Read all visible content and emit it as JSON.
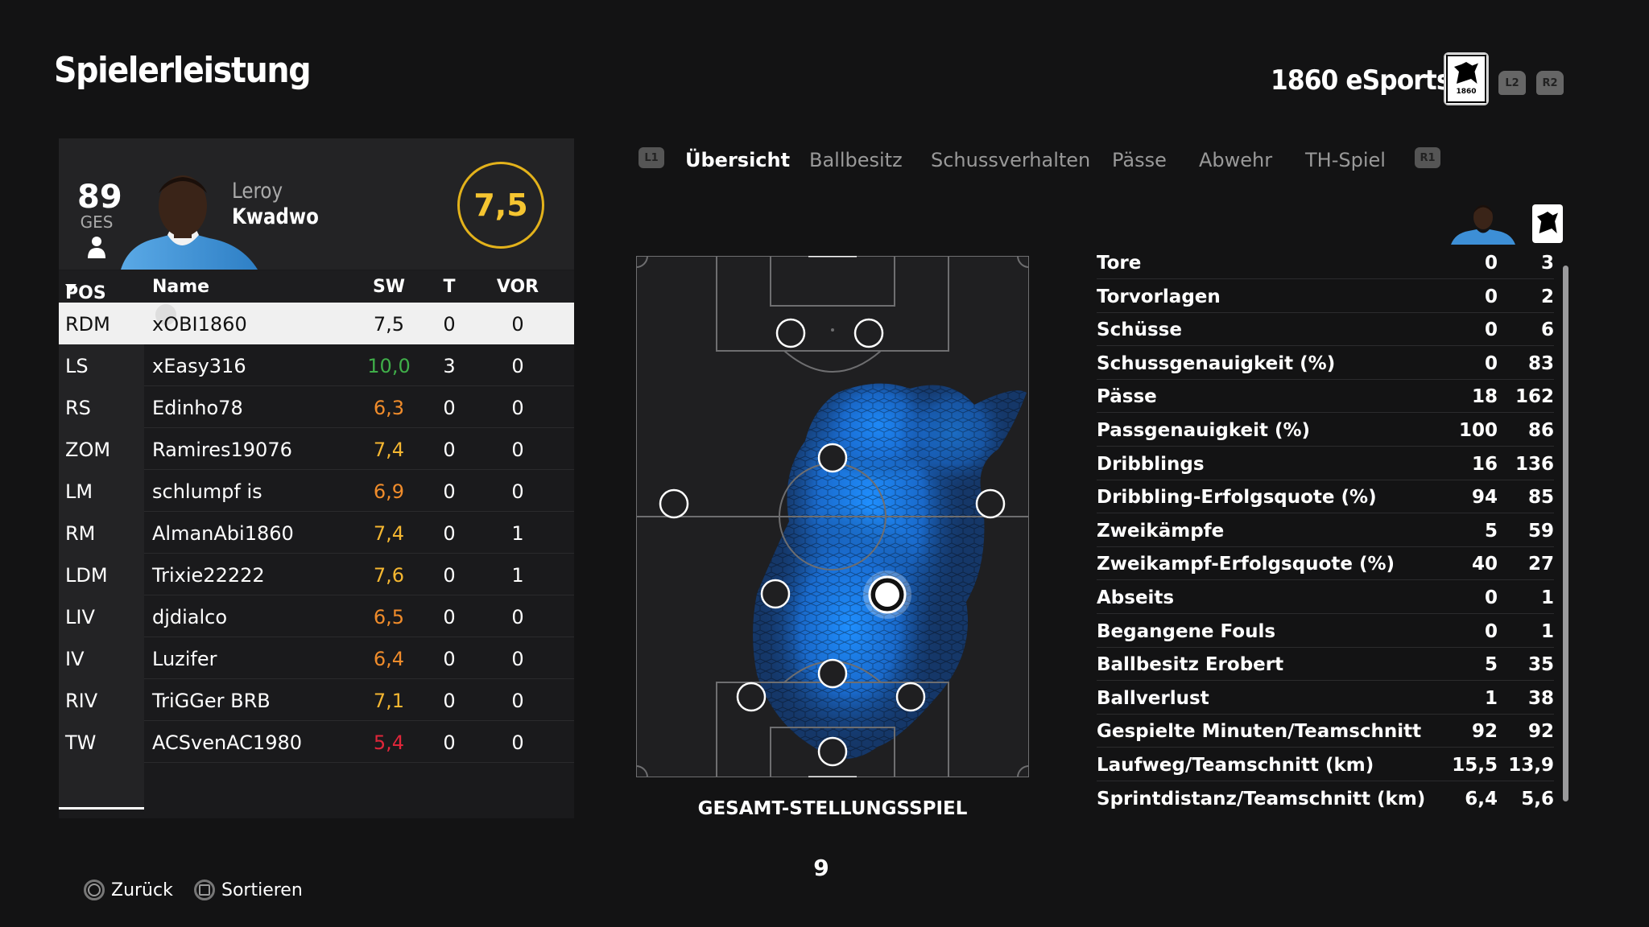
{
  "header": {
    "title": "Spielerleistung",
    "club_name": "1860 eSports",
    "crest_year": "1860",
    "trigger_left": "L2",
    "trigger_right": "R2"
  },
  "player_card": {
    "overall": "89",
    "overall_label": "GES",
    "first_name": "Leroy",
    "last_name": "Kwadwo",
    "rating": "7,5"
  },
  "table": {
    "headers": {
      "pos": "POS",
      "name": "Name",
      "sw": "SW",
      "t": "T",
      "vor": "VOR"
    },
    "rows": [
      {
        "pos": "RDM",
        "name": "xOBI1860",
        "sw": "7,5",
        "t": "0",
        "vor": "0",
        "color": "#111111"
      },
      {
        "pos": "LS",
        "name": "xEasy316",
        "sw": "10,0",
        "t": "3",
        "vor": "0",
        "color": "#3fae49"
      },
      {
        "pos": "RS",
        "name": "Edinho78",
        "sw": "6,3",
        "t": "0",
        "vor": "0",
        "color": "#f08c2b"
      },
      {
        "pos": "ZOM",
        "name": "Ramires19076",
        "sw": "7,4",
        "t": "0",
        "vor": "0",
        "color": "#f5b731"
      },
      {
        "pos": "LM",
        "name": "schlumpf is",
        "sw": "6,9",
        "t": "0",
        "vor": "0",
        "color": "#f08c2b"
      },
      {
        "pos": "RM",
        "name": "AlmanAbi1860",
        "sw": "7,4",
        "t": "0",
        "vor": "1",
        "color": "#f5b731"
      },
      {
        "pos": "LDM",
        "name": "Trixie22222",
        "sw": "7,6",
        "t": "0",
        "vor": "1",
        "color": "#f5b731"
      },
      {
        "pos": "LIV",
        "name": "djdialco",
        "sw": "6,5",
        "t": "0",
        "vor": "0",
        "color": "#f08c2b"
      },
      {
        "pos": "IV",
        "name": "Luzifer",
        "sw": "6,4",
        "t": "0",
        "vor": "0",
        "color": "#f08c2b"
      },
      {
        "pos": "RIV",
        "name": "TriGGer BRB",
        "sw": "7,1",
        "t": "0",
        "vor": "0",
        "color": "#f5b731"
      },
      {
        "pos": "TW",
        "name": "ACSvenAC1980",
        "sw": "5,4",
        "t": "0",
        "vor": "0",
        "color": "#e0263a"
      }
    ]
  },
  "tabs": {
    "left_button": "L1",
    "right_button": "R1",
    "items": [
      "Übersicht",
      "Ballbesitz",
      "Schussverhalten",
      "Pässe",
      "Abwehr",
      "TH-Spiel"
    ]
  },
  "pitch": {
    "title": "GESAMT-STELLUNGSSPIEL",
    "page": "9"
  },
  "stats": [
    {
      "label": "Tore",
      "player": "0",
      "team": "3"
    },
    {
      "label": "Torvorlagen",
      "player": "0",
      "team": "2"
    },
    {
      "label": "Schüsse",
      "player": "0",
      "team": "6"
    },
    {
      "label": "Schussgenauigkeit (%)",
      "player": "0",
      "team": "83"
    },
    {
      "label": "Pässe",
      "player": "18",
      "team": "162"
    },
    {
      "label": "Passgenauigkeit (%)",
      "player": "100",
      "team": "86"
    },
    {
      "label": "Dribblings",
      "player": "16",
      "team": "136"
    },
    {
      "label": "Dribbling-Erfolgsquote (%)",
      "player": "94",
      "team": "85"
    },
    {
      "label": "Zweikämpfe",
      "player": "5",
      "team": "59"
    },
    {
      "label": "Zweikampf-Erfolgsquote (%)",
      "player": "40",
      "team": "27"
    },
    {
      "label": "Abseits",
      "player": "0",
      "team": "1"
    },
    {
      "label": "Begangene Fouls",
      "player": "0",
      "team": "1"
    },
    {
      "label": "Ballbesitz Erobert",
      "player": "5",
      "team": "35"
    },
    {
      "label": "Ballverlust",
      "player": "1",
      "team": "38"
    },
    {
      "label": "Gespielte Minuten/Teamschnitt",
      "player": "92",
      "team": "92"
    },
    {
      "label": "Laufweg/Teamschnitt (km)",
      "player": "15,5",
      "team": "13,9"
    },
    {
      "label": "Sprintdistanz/Teamschnitt (km)",
      "player": "6,4",
      "team": "5,6"
    }
  ],
  "footer": {
    "back": "Zurück",
    "sort": "Sortieren"
  },
  "colors": {
    "accent_gold": "#e3b21b",
    "heatmap_blue": "#1e88ff"
  }
}
